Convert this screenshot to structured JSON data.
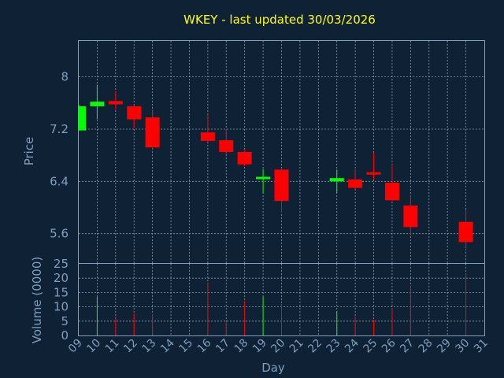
{
  "chart_data": {
    "type": "candlestick",
    "title": "WKEY - last updated 30/03/2026",
    "xlabel": "Day",
    "price_panel": {
      "ylabel": "Price",
      "ylim": [
        5.15,
        8.55
      ],
      "yticks": [
        5.6,
        6.4,
        7.2,
        8
      ],
      "ytick_labels": [
        "5.6",
        "6.4",
        "7.2",
        "8"
      ]
    },
    "volume_panel": {
      "ylabel": "Volume (0000)",
      "ylim": [
        0,
        25
      ],
      "yticks": [
        0,
        5,
        10,
        15,
        20,
        25
      ],
      "ytick_labels": [
        "0",
        "5",
        "10",
        "15",
        "20",
        "25"
      ]
    },
    "xlim": [
      9,
      31
    ],
    "x_tick_values": [
      9,
      10,
      11,
      12,
      13,
      14,
      15,
      16,
      17,
      18,
      19,
      20,
      21,
      22,
      23,
      24,
      25,
      26,
      27,
      28,
      29,
      30,
      31
    ],
    "x_tick_labels": [
      "09",
      "10",
      "11",
      "12",
      "13",
      "14",
      "15",
      "16",
      "17",
      "18",
      "19",
      "20",
      "21",
      "22",
      "23",
      "24",
      "25",
      "26",
      "27",
      "28",
      "29",
      "30",
      "31"
    ],
    "colors": {
      "up": "#00ff00",
      "down": "#ff0000",
      "background": "#0f2135",
      "axis": "#7f9fbf",
      "title": "#ffff00"
    },
    "candles": [
      {
        "day": 9,
        "open": 7.18,
        "high": 7.58,
        "low": 7.18,
        "close": 7.55,
        "volume": 0
      },
      {
        "day": 10,
        "open": 7.55,
        "high": 7.88,
        "low": 7.35,
        "close": 7.62,
        "volume": 13.5
      },
      {
        "day": 11,
        "open": 7.63,
        "high": 7.78,
        "low": 7.5,
        "close": 7.58,
        "volume": 6
      },
      {
        "day": 12,
        "open": 7.55,
        "high": 7.56,
        "low": 7.22,
        "close": 7.35,
        "volume": 7.5
      },
      {
        "day": 13,
        "open": 7.38,
        "high": 7.5,
        "low": 6.88,
        "close": 6.92,
        "volume": 7.5
      },
      {
        "day": 16,
        "open": 7.15,
        "high": 7.42,
        "low": 7.0,
        "close": 7.02,
        "volume": 18.5
      },
      {
        "day": 17,
        "open": 7.03,
        "high": 7.2,
        "low": 6.82,
        "close": 6.85,
        "volume": 5.5
      },
      {
        "day": 18,
        "open": 6.85,
        "high": 6.88,
        "low": 6.63,
        "close": 6.66,
        "volume": 12
      },
      {
        "day": 19,
        "open": 6.45,
        "high": 6.59,
        "low": 6.21,
        "close": 6.47,
        "volume": 13.5
      },
      {
        "day": 20,
        "open": 6.58,
        "high": 6.59,
        "low": 5.92,
        "close": 6.1,
        "volume": 11
      },
      {
        "day": 23,
        "open": 6.4,
        "high": 6.58,
        "low": 6.22,
        "close": 6.45,
        "volume": 8.5
      },
      {
        "day": 24,
        "open": 6.43,
        "high": 6.58,
        "low": 6.28,
        "close": 6.3,
        "volume": 6.5
      },
      {
        "day": 25,
        "open": 6.54,
        "high": 6.84,
        "low": 6.43,
        "close": 6.52,
        "volume": 5.5
      },
      {
        "day": 26,
        "open": 6.38,
        "high": 6.66,
        "low": 6.1,
        "close": 6.11,
        "volume": 9.5
      },
      {
        "day": 27,
        "open": 6.03,
        "high": 6.18,
        "low": 5.57,
        "close": 5.7,
        "volume": 17.5
      },
      {
        "day": 30,
        "open": 5.78,
        "high": 5.97,
        "low": 5.35,
        "close": 5.47,
        "volume": 21.5
      }
    ]
  }
}
